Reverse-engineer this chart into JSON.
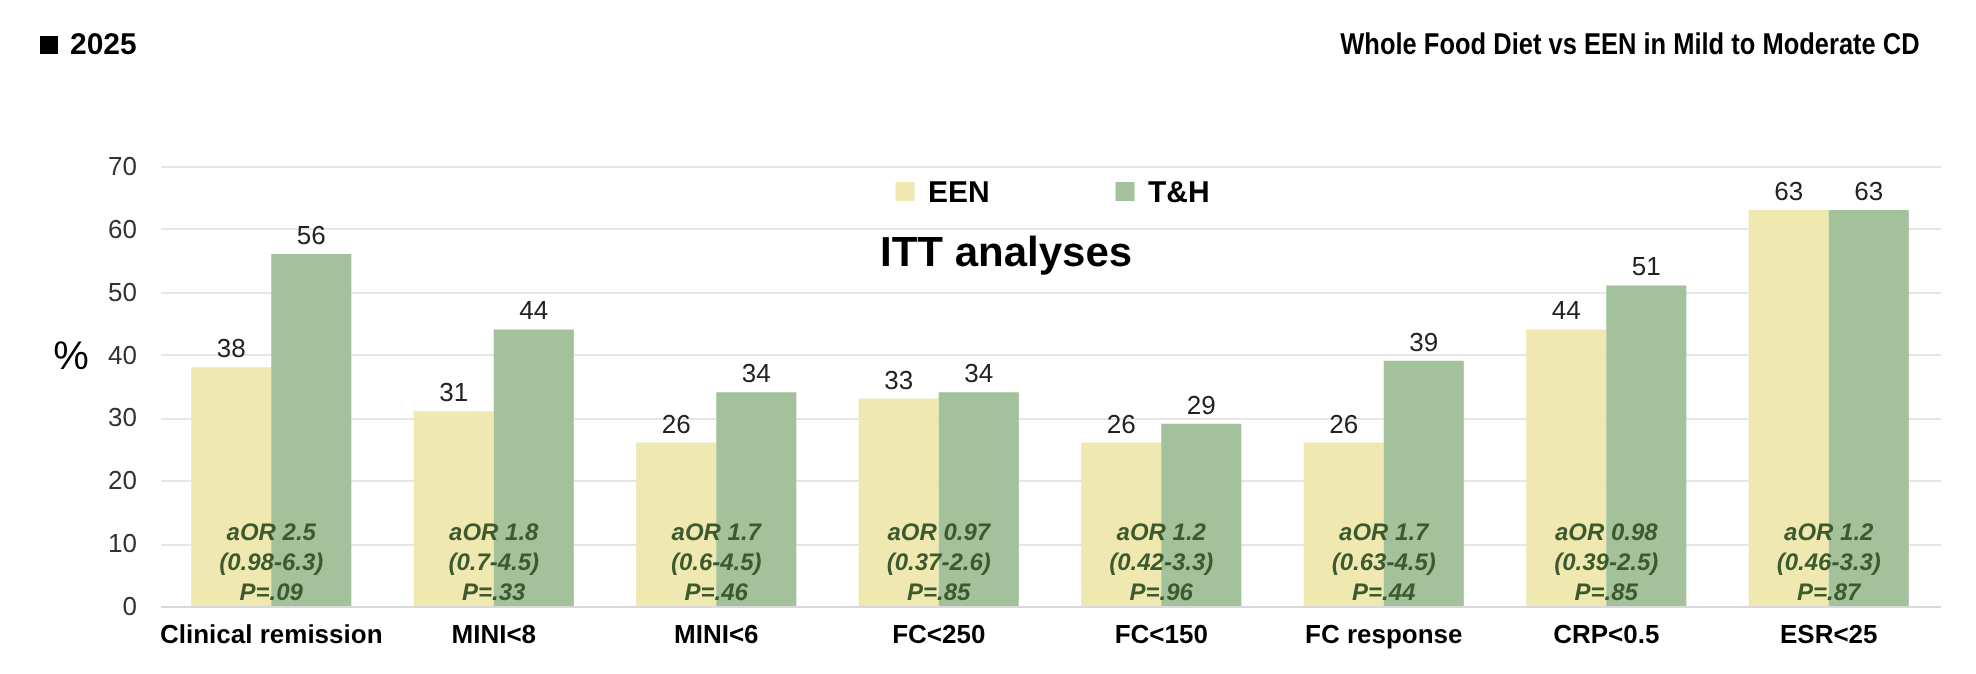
{
  "chart_data": {
    "type": "bar",
    "title": "Whole Food Diet vs EEN in Mild to Moderate CD",
    "subtitle": "2025",
    "ylabel": "%",
    "categories": [
      "Clinical remission",
      "MINI<8",
      "MINI<6",
      "FC<250",
      "FC<150",
      "FC response",
      "CRP<0.5",
      "ESR<25"
    ],
    "series": [
      {
        "name": "EEN",
        "color": "#efe9b1",
        "values": [
          38,
          31,
          26,
          33,
          26,
          26,
          44,
          63
        ]
      },
      {
        "name": "T&H",
        "color": "#a3c29c",
        "values": [
          56,
          44,
          34,
          34,
          29,
          39,
          51,
          63
        ]
      }
    ],
    "ylim": [
      0,
      70
    ],
    "yticks": [
      0,
      10,
      20,
      30,
      40,
      50,
      60,
      70
    ],
    "grid": "y",
    "legend": "top",
    "data_labels": true,
    "annotations": [
      "ITT analyses",
      {
        "text": "aOR 2.5\n(0.98-6.3)\nP=.09",
        "x": "Clinical remission"
      },
      {
        "text": "aOR 1.8\n(0.7-4.5)\nP=.33",
        "x": "MINI<8"
      },
      {
        "text": "aOR 1.7\n(0.6-4.5)\nP=.46",
        "x": "MINI<6"
      },
      {
        "text": "aOR 0.97\n(0.37-2.6)\nP=.85",
        "x": "FC<250"
      },
      {
        "text": "aOR 1.2\n(0.42-3.3)\nP=.96",
        "x": "FC<150"
      },
      {
        "text": "aOR 1.7\n(0.63-4.5)\nP=.44",
        "x": "FC response"
      },
      {
        "text": "aOR 0.98\n(0.39-2.5)\nP=.85",
        "x": "CRP<0.5"
      },
      {
        "text": "aOR 1.2\n(0.46-3.3)\nP=.87",
        "x": "ESR<25"
      }
    ]
  }
}
